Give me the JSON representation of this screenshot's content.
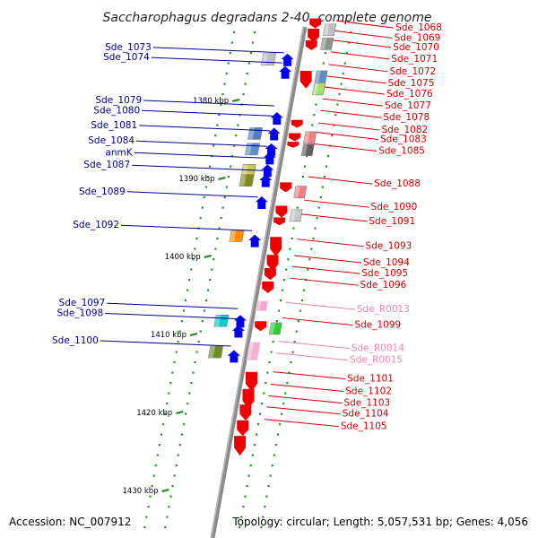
{
  "title": "Saccharophagus degradans 2-40, complete genome",
  "footer": {
    "accession": "Accession: NC_007912",
    "topology": "Topology: circular; Length: 5,057,531 bp; Genes: 4,056"
  },
  "colors": {
    "left_label": "#00008b",
    "right_label": "#cc0000",
    "rna_label": "#ee82b4",
    "backbone": "#888888",
    "tick": "#2e8b2e"
  },
  "ticks": [
    {
      "kbp": 1380,
      "label": "1380 kbp"
    },
    {
      "kbp": 1390,
      "label": "1390 kbp"
    },
    {
      "kbp": 1400,
      "label": "1400 kbp"
    },
    {
      "kbp": 1410,
      "label": "1410 kbp"
    },
    {
      "kbp": 1420,
      "label": "1420 kbp"
    },
    {
      "kbp": 1430,
      "label": "1430 kbp"
    }
  ],
  "left_labels": [
    {
      "text": "Sde_1073",
      "pos": 1373.2
    },
    {
      "text": "Sde_1074",
      "pos": 1374.5
    },
    {
      "text": "Sde_1079",
      "pos": 1380.0
    },
    {
      "text": "Sde_1080",
      "pos": 1381.3
    },
    {
      "text": "Sde_1081",
      "pos": 1383.2
    },
    {
      "text": "Sde_1084",
      "pos": 1385.2
    },
    {
      "text": "anmK",
      "pos": 1386.7
    },
    {
      "text": "Sde_1087",
      "pos": 1388.3
    },
    {
      "text": "Sde_1089",
      "pos": 1391.7
    },
    {
      "text": "Sde_1092",
      "pos": 1396.0
    },
    {
      "text": "Sde_1097",
      "pos": 1406.0
    },
    {
      "text": "Sde_1098",
      "pos": 1407.3
    },
    {
      "text": "Sde_1100",
      "pos": 1410.8
    }
  ],
  "right_labels": [
    {
      "text": "Sde_1068",
      "pos": 1370.7,
      "rna": false
    },
    {
      "text": "Sde_1069",
      "pos": 1372.0,
      "rna": false
    },
    {
      "text": "Sde_1070",
      "pos": 1373.2,
      "rna": false
    },
    {
      "text": "Sde_1071",
      "pos": 1374.7,
      "rna": false
    },
    {
      "text": "Sde_1072",
      "pos": 1376.3,
      "rna": false
    },
    {
      "text": "Sde_1075",
      "pos": 1377.8,
      "rna": false
    },
    {
      "text": "Sde_1076",
      "pos": 1379.2,
      "rna": false
    },
    {
      "text": "Sde_1077",
      "pos": 1380.7,
      "rna": false
    },
    {
      "text": "Sde_1078",
      "pos": 1382.2,
      "rna": false
    },
    {
      "text": "Sde_1082",
      "pos": 1383.8,
      "rna": false
    },
    {
      "text": "Sde_1083",
      "pos": 1385.0,
      "rna": false
    },
    {
      "text": "Sde_1085",
      "pos": 1386.5,
      "rna": false
    },
    {
      "text": "Sde_1088",
      "pos": 1390.7,
      "rna": false
    },
    {
      "text": "Sde_1090",
      "pos": 1393.7,
      "rna": false
    },
    {
      "text": "Sde_1091",
      "pos": 1395.5,
      "rna": false
    },
    {
      "text": "Sde_1093",
      "pos": 1398.7,
      "rna": false
    },
    {
      "text": "Sde_1094",
      "pos": 1400.8,
      "rna": false
    },
    {
      "text": "Sde_1095",
      "pos": 1402.2,
      "rna": false
    },
    {
      "text": "Sde_1096",
      "pos": 1403.7,
      "rna": false
    },
    {
      "text": "Sde_R0013",
      "pos": 1406.8,
      "rna": true
    },
    {
      "text": "Sde_1099",
      "pos": 1408.8,
      "rna": false
    },
    {
      "text": "Sde_R0014",
      "pos": 1411.8,
      "rna": true
    },
    {
      "text": "Sde_R0015",
      "pos": 1413.3,
      "rna": true
    },
    {
      "text": "Sde_1101",
      "pos": 1415.7,
      "rna": false
    },
    {
      "text": "Sde_1102",
      "pos": 1417.3,
      "rna": false
    },
    {
      "text": "Sde_1103",
      "pos": 1418.8,
      "rna": false
    },
    {
      "text": "Sde_1104",
      "pos": 1420.2,
      "rna": false
    },
    {
      "text": "Sde_1105",
      "pos": 1421.8,
      "rna": false
    }
  ]
}
